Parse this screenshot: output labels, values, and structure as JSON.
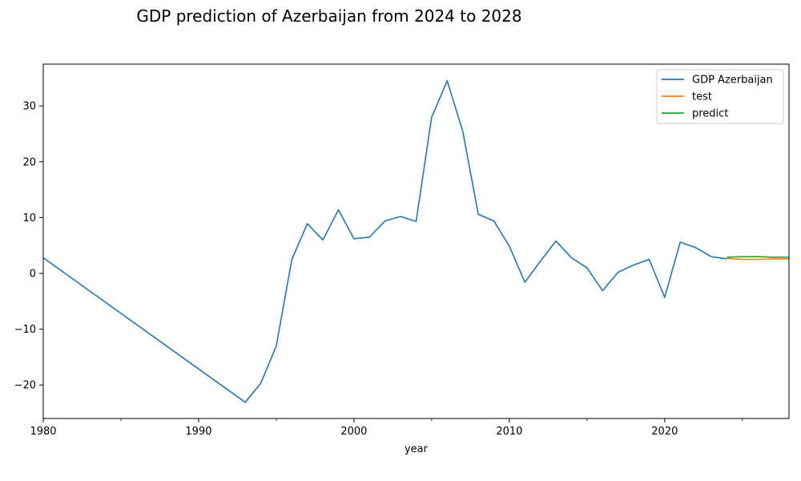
{
  "chart_data": {
    "type": "line",
    "title": "GDP prediction of Azerbaijan from 2024 to 2028",
    "xlabel": "year",
    "ylabel": "",
    "xlim": [
      1980,
      2028
    ],
    "ylim": [
      -26,
      37.5
    ],
    "xticks": [
      1980,
      1990,
      2000,
      2010,
      2020
    ],
    "xminor_ticks": [
      1985,
      1995,
      2005,
      2015,
      2025
    ],
    "yticks": [
      -20,
      -10,
      0,
      10,
      20,
      30
    ],
    "grid": false,
    "legend_position": "top-right",
    "series": [
      {
        "name": "GDP Azerbaijan",
        "color": "#1f77b4",
        "x": [
          1980,
          1993,
          1994,
          1995,
          1996,
          1997,
          1998,
          1999,
          2000,
          2001,
          2002,
          2003,
          2004,
          2005,
          2006,
          2007,
          2008,
          2009,
          2010,
          2011,
          2012,
          2013,
          2014,
          2015,
          2016,
          2017,
          2018,
          2019,
          2020,
          2021,
          2022,
          2023,
          2024
        ],
        "values": [
          2.8,
          -23.1,
          -19.7,
          -13.0,
          2.5,
          8.9,
          6.0,
          11.4,
          6.2,
          6.5,
          9.4,
          10.2,
          9.3,
          28.0,
          34.5,
          25.5,
          10.6,
          9.4,
          4.9,
          -1.6,
          2.2,
          5.8,
          2.8,
          1.0,
          -3.1,
          0.2,
          1.5,
          2.5,
          -4.3,
          5.6,
          4.6,
          3.0,
          2.6
        ]
      },
      {
        "name": "test",
        "color": "#ff7f0e",
        "x": [
          2024,
          2025,
          2026,
          2027,
          2028
        ],
        "values": [
          2.7,
          2.5,
          2.5,
          2.6,
          2.6
        ]
      },
      {
        "name": "predict",
        "color": "#2ca02c",
        "x": [
          2024,
          2025,
          2026,
          2027,
          2028
        ],
        "values": [
          2.9,
          3.0,
          3.0,
          2.9,
          2.9
        ]
      }
    ]
  }
}
